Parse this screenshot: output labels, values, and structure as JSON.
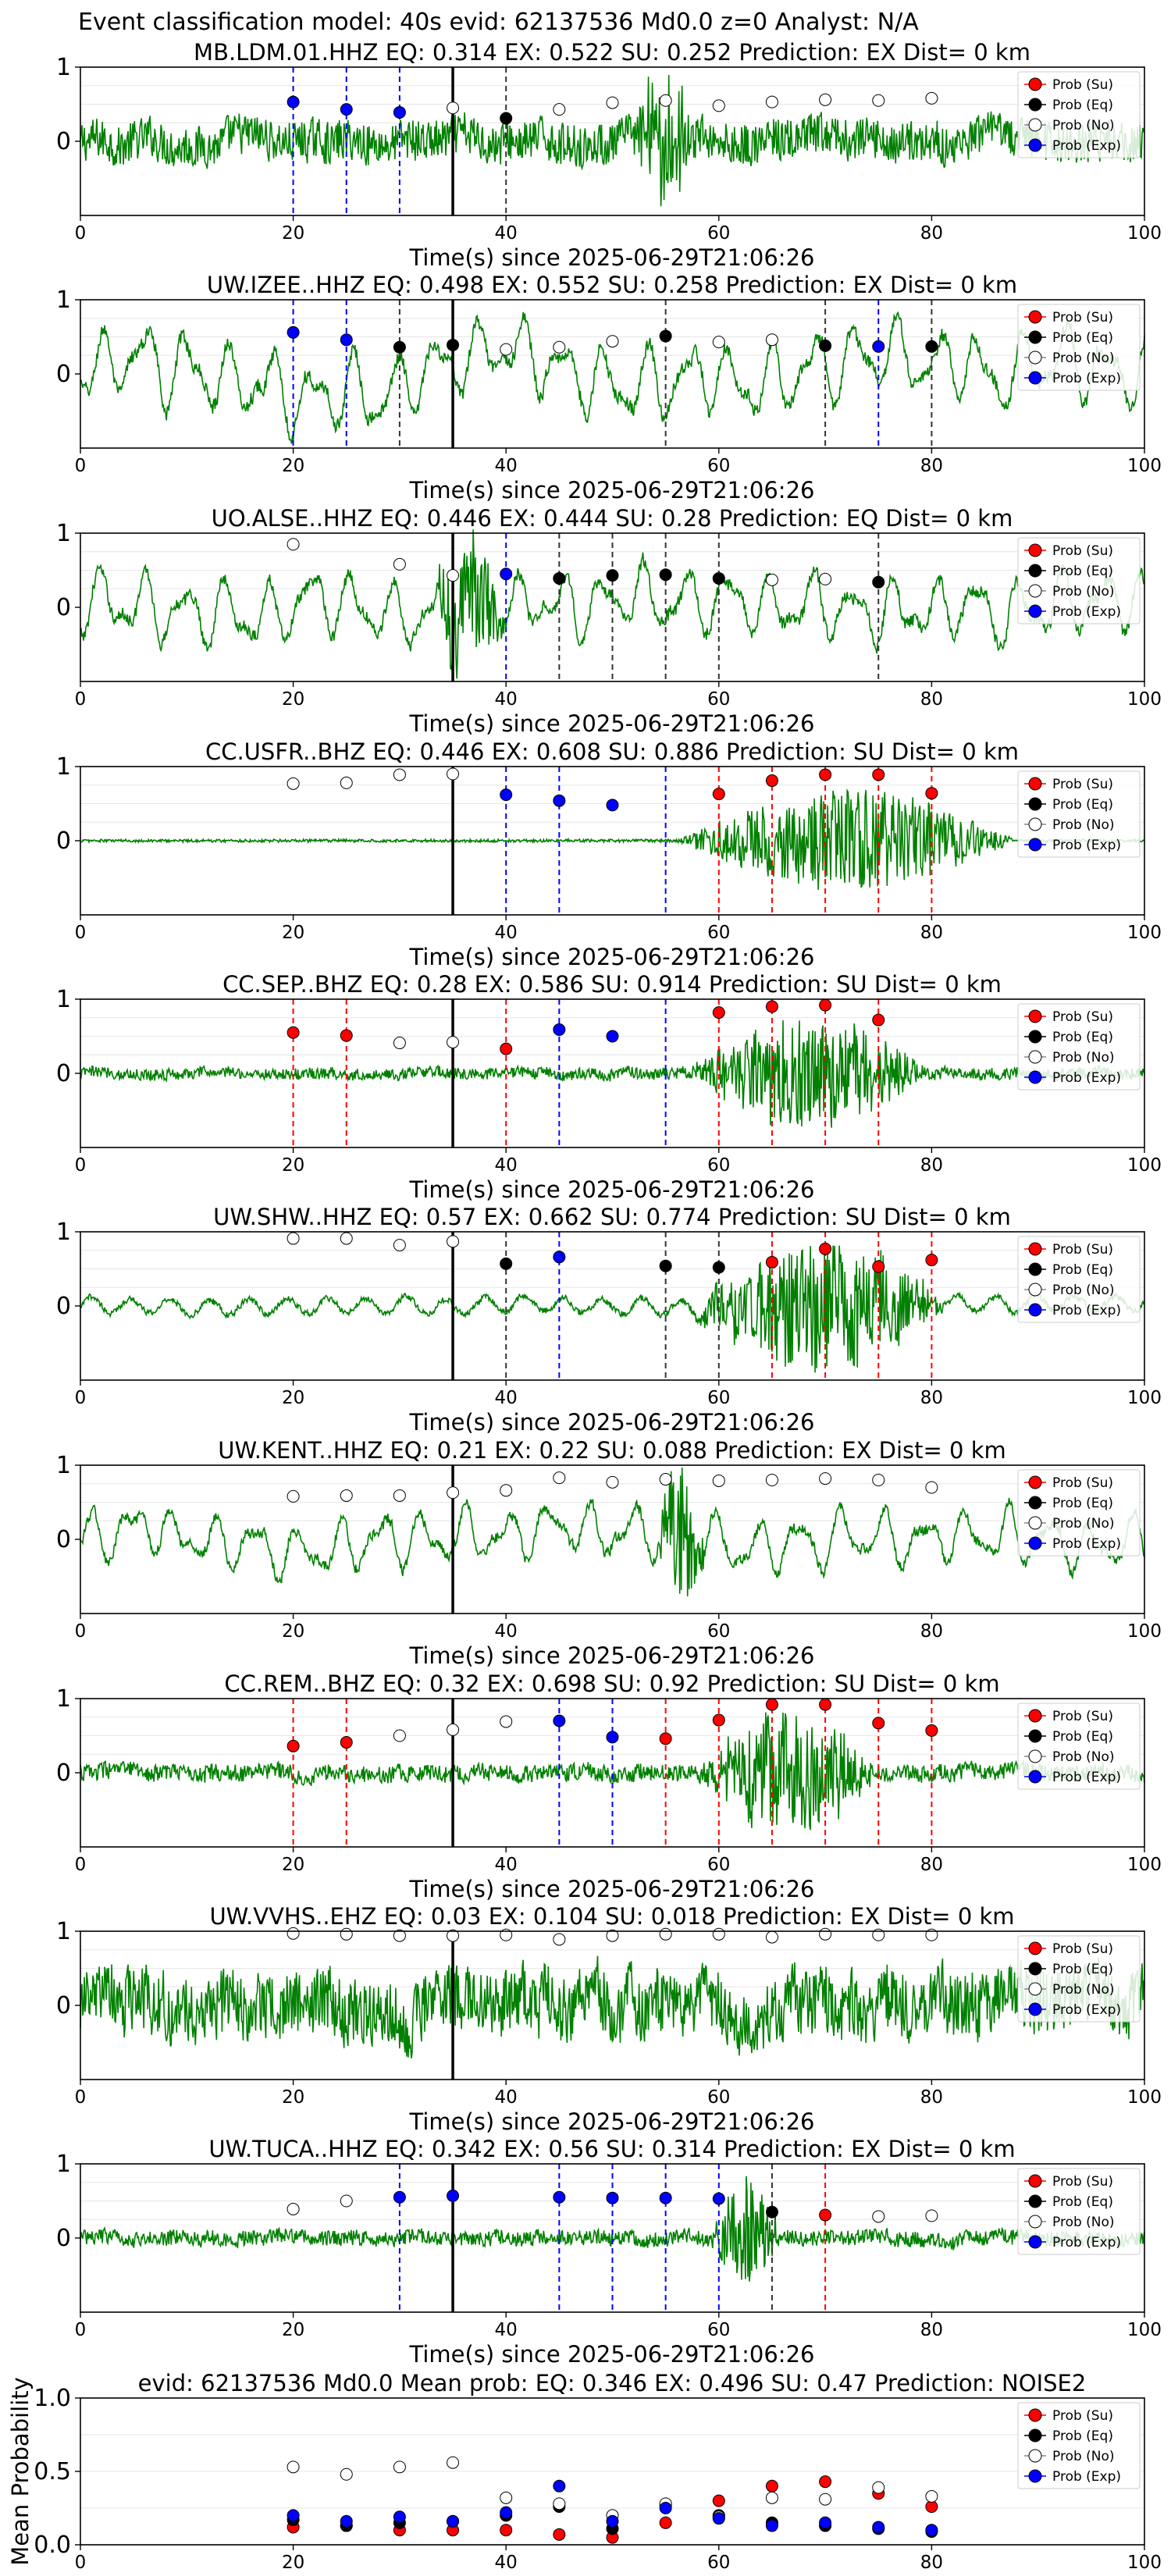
{
  "suptitle": "Event classification model: 40s evid: 62137536 Md0.0 z=0 Analyst: N/A",
  "colors": {
    "waveform": "#008000",
    "su": "#ff0000",
    "eq": "#000000",
    "no": "#ffffff",
    "exp": "#0000ff",
    "arrival": "#000000",
    "grid": "#e6e6e6"
  },
  "legend": {
    "placement": "top-right",
    "entries": [
      "Prob (Su)",
      "Prob (Eq)",
      "Prob (No)",
      "Prob (Exp)"
    ]
  },
  "chart_data": [
    {
      "type": "line",
      "station": "MB.LDM.01.HHZ",
      "title": "MB.LDM.01.HHZ   EQ: 0.314  EX: 0.522  SU: 0.252   Prediction: EX    Dist= 0 km",
      "xlabel": "Time(s) since 2025-06-29T21:06:26",
      "xlim": [
        0,
        100
      ],
      "ylim": [
        -1,
        1
      ],
      "xticks": [
        "0",
        "20",
        "40",
        "60",
        "80",
        "100"
      ],
      "yticks": [
        "1",
        "0"
      ],
      "arrival_time": 35,
      "waveform": {
        "style": "broadband noise",
        "amplitude": 0.32,
        "burst": [
          52,
          58,
          0.85
        ]
      },
      "window_times": [
        20,
        25,
        30,
        35,
        40,
        45,
        50,
        55,
        60,
        65,
        70,
        75,
        80
      ],
      "window_probs": [
        0.53,
        0.43,
        0.39,
        0.45,
        0.31,
        0.43,
        0.52,
        0.55,
        0.48,
        0.53,
        0.56,
        0.55,
        0.58
      ],
      "window_class": [
        "exp",
        "exp",
        "exp",
        "no",
        "eq",
        "no",
        "no",
        "no",
        "no",
        "no",
        "no",
        "no",
        "no"
      ],
      "markers": [
        {
          "t": 20,
          "kind": "exp"
        },
        {
          "t": 25,
          "kind": "exp"
        },
        {
          "t": 30,
          "kind": "exp"
        },
        {
          "t": 40,
          "kind": "eq"
        }
      ]
    },
    {
      "type": "line",
      "station": "UW.IZEE..HHZ",
      "title": "UW.IZEE..HHZ   EQ: 0.498  EX: 0.552  SU: 0.258   Prediction: EX    Dist= 0 km",
      "xlabel": "Time(s) since 2025-06-29T21:06:26",
      "xlim": [
        0,
        100
      ],
      "ylim": [
        -1,
        1
      ],
      "xticks": [
        "0",
        "20",
        "40",
        "60",
        "80",
        "100"
      ],
      "yticks": [
        "1",
        "0"
      ],
      "arrival_time": 35,
      "waveform": {
        "style": "long-period swell",
        "amplitude": 0.6
      },
      "window_times": [
        20,
        25,
        30,
        35,
        40,
        45,
        50,
        55,
        60,
        65,
        70,
        75,
        80
      ],
      "window_probs": [
        0.56,
        0.46,
        0.36,
        0.39,
        0.33,
        0.36,
        0.44,
        0.51,
        0.43,
        0.46,
        0.38,
        0.37,
        0.37
      ],
      "window_class": [
        "exp",
        "exp",
        "eq",
        "eq",
        "no",
        "no",
        "no",
        "eq",
        "no",
        "no",
        "eq",
        "exp",
        "eq"
      ],
      "markers": [
        {
          "t": 20,
          "kind": "exp"
        },
        {
          "t": 25,
          "kind": "exp"
        },
        {
          "t": 30,
          "kind": "eq"
        },
        {
          "t": 55,
          "kind": "eq"
        },
        {
          "t": 70,
          "kind": "eq"
        },
        {
          "t": 75,
          "kind": "exp"
        },
        {
          "t": 80,
          "kind": "eq"
        }
      ]
    },
    {
      "type": "line",
      "station": "UO.ALSE..HHZ",
      "title": "UO.ALSE..HHZ   EQ: 0.446  EX: 0.444  SU: 0.28   Prediction: EQ    Dist= 0 km",
      "xlabel": "Time(s) since 2025-06-29T21:06:26",
      "xlim": [
        0,
        100
      ],
      "ylim": [
        -1,
        1
      ],
      "xticks": [
        "0",
        "20",
        "40",
        "60",
        "80",
        "100"
      ],
      "yticks": [
        "1",
        "0"
      ],
      "arrival_time": 35,
      "waveform": {
        "style": "long-period swell",
        "amplitude": 0.55,
        "burst": [
          33,
          40,
          0.9
        ]
      },
      "window_times": [
        20,
        25,
        30,
        35,
        40,
        45,
        50,
        55,
        60,
        65,
        70,
        75,
        80
      ],
      "window_probs": [
        0.85,
        null,
        0.58,
        0.43,
        0.45,
        0.39,
        0.43,
        0.44,
        0.39,
        0.37,
        0.38,
        0.34,
        null
      ],
      "window_class": [
        "no",
        null,
        "no",
        "no",
        "exp",
        "eq",
        "eq",
        "eq",
        "eq",
        "no",
        "no",
        "eq",
        null
      ],
      "markers": [
        {
          "t": 40,
          "kind": "exp"
        },
        {
          "t": 45,
          "kind": "eq"
        },
        {
          "t": 50,
          "kind": "eq"
        },
        {
          "t": 55,
          "kind": "eq"
        },
        {
          "t": 60,
          "kind": "eq"
        },
        {
          "t": 75,
          "kind": "eq"
        }
      ]
    },
    {
      "type": "line",
      "station": "CC.USFR..BHZ",
      "title": "CC.USFR..BHZ   EQ: 0.446  EX: 0.608  SU: 0.886   Prediction: SU    Dist= 0 km",
      "xlabel": "Time(s) since 2025-06-29T21:06:26",
      "xlim": [
        0,
        100
      ],
      "ylim": [
        -1,
        1
      ],
      "xticks": [
        "0",
        "20",
        "40",
        "60",
        "80",
        "100"
      ],
      "yticks": [
        "1",
        "0"
      ],
      "arrival_time": 35,
      "waveform": {
        "style": "quiet then burst",
        "amplitude": 0.02,
        "burst": [
          56,
          88,
          0.7
        ]
      },
      "window_times": [
        20,
        25,
        30,
        35,
        40,
        45,
        50,
        55,
        60,
        65,
        70,
        75,
        80
      ],
      "window_probs": [
        0.77,
        0.78,
        0.89,
        0.9,
        0.62,
        0.54,
        0.48,
        null,
        0.63,
        0.81,
        0.89,
        0.89,
        0.64
      ],
      "window_class": [
        "no",
        "no",
        "no",
        "no",
        "exp",
        "exp",
        "exp",
        null,
        "su",
        "su",
        "su",
        "su",
        "su"
      ],
      "markers": [
        {
          "t": 40,
          "kind": "exp"
        },
        {
          "t": 45,
          "kind": "exp"
        },
        {
          "t": 55,
          "kind": "exp"
        },
        {
          "t": 60,
          "kind": "su"
        },
        {
          "t": 65,
          "kind": "su"
        },
        {
          "t": 70,
          "kind": "su"
        },
        {
          "t": 75,
          "kind": "su"
        },
        {
          "t": 80,
          "kind": "su"
        }
      ]
    },
    {
      "type": "line",
      "station": "CC.SEP..BHZ",
      "title": "CC.SEP..BHZ   EQ: 0.28  EX: 0.586  SU: 0.914   Prediction: SU    Dist= 0 km",
      "xlabel": "Time(s) since 2025-06-29T21:06:26",
      "xlim": [
        0,
        100
      ],
      "ylim": [
        -1,
        1
      ],
      "xticks": [
        "0",
        "20",
        "40",
        "60",
        "80",
        "100"
      ],
      "yticks": [
        "1",
        "0"
      ],
      "arrival_time": 35,
      "waveform": {
        "style": "low noise then burst",
        "amplitude": 0.09,
        "burst": [
          57,
          80,
          0.75
        ]
      },
      "window_times": [
        20,
        25,
        30,
        35,
        40,
        45,
        50,
        55,
        60,
        65,
        70,
        75,
        80
      ],
      "window_probs": [
        0.55,
        0.51,
        0.41,
        0.42,
        0.33,
        0.59,
        0.5,
        null,
        0.82,
        0.9,
        0.92,
        0.72,
        null
      ],
      "window_class": [
        "su",
        "su",
        "no",
        "no",
        "su",
        "exp",
        "exp",
        null,
        "su",
        "su",
        "su",
        "su",
        null
      ],
      "markers": [
        {
          "t": 20,
          "kind": "su"
        },
        {
          "t": 25,
          "kind": "su"
        },
        {
          "t": 40,
          "kind": "su"
        },
        {
          "t": 45,
          "kind": "exp"
        },
        {
          "t": 55,
          "kind": "exp"
        },
        {
          "t": 60,
          "kind": "su"
        },
        {
          "t": 65,
          "kind": "su"
        },
        {
          "t": 70,
          "kind": "su"
        },
        {
          "t": 75,
          "kind": "su"
        }
      ]
    },
    {
      "type": "line",
      "station": "UW.SHW..HHZ",
      "title": "UW.SHW..HHZ   EQ: 0.57  EX: 0.662  SU: 0.774   Prediction: SU    Dist= 0 km",
      "xlabel": "Time(s) since 2025-06-29T21:06:26",
      "xlim": [
        0,
        100
      ],
      "ylim": [
        -1,
        1
      ],
      "xticks": [
        "0",
        "20",
        "40",
        "60",
        "80",
        "100"
      ],
      "yticks": [
        "1",
        "0"
      ],
      "arrival_time": 35,
      "waveform": {
        "style": "swell then burst",
        "amplitude": 0.15,
        "burst": [
          57,
          82,
          0.85
        ]
      },
      "window_times": [
        20,
        25,
        30,
        35,
        40,
        45,
        50,
        55,
        60,
        65,
        70,
        75,
        80
      ],
      "window_probs": [
        0.91,
        0.91,
        0.82,
        0.87,
        0.57,
        0.66,
        null,
        0.54,
        0.52,
        0.59,
        0.77,
        0.53,
        0.62
      ],
      "window_class": [
        "no",
        "no",
        "no",
        "no",
        "eq",
        "exp",
        null,
        "eq",
        "eq",
        "su",
        "su",
        "su",
        "su"
      ],
      "markers": [
        {
          "t": 40,
          "kind": "eq"
        },
        {
          "t": 45,
          "kind": "exp"
        },
        {
          "t": 55,
          "kind": "eq"
        },
        {
          "t": 60,
          "kind": "eq"
        },
        {
          "t": 65,
          "kind": "su"
        },
        {
          "t": 70,
          "kind": "su"
        },
        {
          "t": 75,
          "kind": "su"
        },
        {
          "t": 80,
          "kind": "su"
        }
      ]
    },
    {
      "type": "line",
      "station": "UW.KENT..HHZ",
      "title": "UW.KENT..HHZ   EQ: 0.21  EX: 0.22  SU: 0.088   Prediction: EX    Dist= 0 km",
      "xlabel": "Time(s) since 2025-06-29T21:06:26",
      "xlim": [
        0,
        100
      ],
      "ylim": [
        -1,
        1
      ],
      "xticks": [
        "0",
        "20",
        "40",
        "60",
        "80",
        "100"
      ],
      "yticks": [
        "1",
        "0"
      ],
      "arrival_time": 35,
      "waveform": {
        "style": "long-period swell",
        "amplitude": 0.45,
        "burst": [
          54,
          59,
          0.9
        ]
      },
      "window_times": [
        20,
        25,
        30,
        35,
        40,
        45,
        50,
        55,
        60,
        65,
        70,
        75,
        80
      ],
      "window_probs": [
        0.58,
        0.59,
        0.59,
        0.63,
        0.66,
        0.83,
        0.77,
        0.81,
        0.79,
        0.8,
        0.82,
        0.8,
        0.7
      ],
      "window_class": [
        "no",
        "no",
        "no",
        "no",
        "no",
        "no",
        "no",
        "no",
        "no",
        "no",
        "no",
        "no",
        "no"
      ],
      "markers": []
    },
    {
      "type": "line",
      "station": "CC.REM..BHZ",
      "title": "CC.REM..BHZ   EQ: 0.32  EX: 0.698  SU: 0.92   Prediction: SU    Dist= 0 km",
      "xlabel": "Time(s) since 2025-06-29T21:06:26",
      "xlim": [
        0,
        100
      ],
      "ylim": [
        -1,
        1
      ],
      "xticks": [
        "0",
        "20",
        "40",
        "60",
        "80",
        "100"
      ],
      "yticks": [
        "1",
        "0"
      ],
      "arrival_time": 35,
      "waveform": {
        "style": "noise then burst",
        "amplitude": 0.13,
        "burst": [
          58,
          75,
          0.8
        ]
      },
      "window_times": [
        20,
        25,
        30,
        35,
        40,
        45,
        50,
        55,
        60,
        65,
        70,
        75,
        80
      ],
      "window_probs": [
        0.36,
        0.41,
        0.5,
        0.58,
        0.69,
        0.7,
        0.48,
        0.46,
        0.71,
        0.92,
        0.92,
        0.67,
        0.57
      ],
      "window_class": [
        "su",
        "su",
        "no",
        "no",
        "no",
        "exp",
        "exp",
        "su",
        "su",
        "su",
        "su",
        "su",
        "su"
      ],
      "markers": [
        {
          "t": 20,
          "kind": "su"
        },
        {
          "t": 25,
          "kind": "su"
        },
        {
          "t": 45,
          "kind": "exp"
        },
        {
          "t": 50,
          "kind": "exp"
        },
        {
          "t": 55,
          "kind": "su"
        },
        {
          "t": 60,
          "kind": "su"
        },
        {
          "t": 65,
          "kind": "su"
        },
        {
          "t": 70,
          "kind": "su"
        },
        {
          "t": 75,
          "kind": "su"
        },
        {
          "t": 80,
          "kind": "su"
        }
      ]
    },
    {
      "type": "line",
      "station": "UW.VVHS..EHZ",
      "title": "UW.VVHS..EHZ   EQ: 0.03  EX: 0.104  SU: 0.018   Prediction: EX    Dist= 0 km",
      "xlabel": "Time(s) since 2025-06-29T21:06:26",
      "xlim": [
        0,
        100
      ],
      "ylim": [
        -1,
        1
      ],
      "xticks": [
        "0",
        "20",
        "40",
        "60",
        "80",
        "100"
      ],
      "yticks": [
        "1",
        "0"
      ],
      "arrival_time": 35,
      "waveform": {
        "style": "dense noise",
        "amplitude": 0.55
      },
      "window_times": [
        20,
        25,
        30,
        35,
        40,
        45,
        50,
        55,
        60,
        65,
        70,
        75,
        80
      ],
      "window_probs": [
        0.97,
        0.96,
        0.94,
        0.94,
        0.95,
        0.89,
        0.94,
        0.96,
        0.96,
        0.92,
        0.96,
        0.95,
        0.95
      ],
      "window_class": [
        "no",
        "no",
        "no",
        "no",
        "no",
        "no",
        "no",
        "no",
        "no",
        "no",
        "no",
        "no",
        "no"
      ],
      "markers": []
    },
    {
      "type": "line",
      "station": "UW.TUCA..HHZ",
      "title": "UW.TUCA..HHZ   EQ: 0.342  EX: 0.56  SU: 0.314   Prediction: EX    Dist= 0 km",
      "xlabel": "Time(s) since 2025-06-29T21:06:26",
      "xlim": [
        0,
        100
      ],
      "ylim": [
        -1,
        1
      ],
      "xticks": [
        "0",
        "20",
        "40",
        "60",
        "80",
        "100"
      ],
      "yticks": [
        "1",
        "0"
      ],
      "arrival_time": 35,
      "waveform": {
        "style": "noise with burst",
        "amplitude": 0.12,
        "burst": [
          59,
          66,
          0.75
        ]
      },
      "window_times": [
        20,
        25,
        30,
        35,
        40,
        45,
        50,
        55,
        60,
        65,
        70,
        75,
        80
      ],
      "window_probs": [
        0.39,
        0.5,
        0.55,
        0.57,
        null,
        0.55,
        0.54,
        0.54,
        0.53,
        0.35,
        0.31,
        0.29,
        0.3
      ],
      "window_class": [
        "no",
        "no",
        "exp",
        "exp",
        null,
        "exp",
        "exp",
        "exp",
        "exp",
        "eq",
        "su",
        "no",
        "no"
      ],
      "markers": [
        {
          "t": 30,
          "kind": "exp"
        },
        {
          "t": 45,
          "kind": "exp"
        },
        {
          "t": 50,
          "kind": "exp"
        },
        {
          "t": 55,
          "kind": "exp"
        },
        {
          "t": 60,
          "kind": "exp"
        },
        {
          "t": 65,
          "kind": "eq"
        },
        {
          "t": 70,
          "kind": "su"
        }
      ]
    },
    {
      "type": "scatter",
      "title": "evid: 62137536  Md0.0   Mean prob:   EQ: 0.346  EX: 0.496  SU: 0.47   Prediction: NOISE2",
      "xlabel": "",
      "ylabel": "Mean Probability",
      "xlim": [
        0,
        100
      ],
      "ylim": [
        0,
        1
      ],
      "xticks": [
        "0",
        "20",
        "40",
        "60",
        "80",
        "100"
      ],
      "yticks": [
        "0.0",
        "0.5",
        "1.0"
      ],
      "grid": true,
      "x": [
        20,
        25,
        30,
        35,
        40,
        45,
        50,
        55,
        60,
        65,
        70,
        75,
        80
      ],
      "series": [
        {
          "name": "Prob (Su)",
          "key": "su",
          "values": [
            0.12,
            0.13,
            0.1,
            0.1,
            0.1,
            0.07,
            0.05,
            0.15,
            0.3,
            0.4,
            0.43,
            0.35,
            0.26
          ]
        },
        {
          "name": "Prob (Eq)",
          "key": "eq",
          "values": [
            0.17,
            0.13,
            0.15,
            0.16,
            0.2,
            0.26,
            0.11,
            0.27,
            0.2,
            0.15,
            0.13,
            0.11,
            0.09
          ]
        },
        {
          "name": "Prob (No)",
          "key": "no",
          "values": [
            0.53,
            0.48,
            0.53,
            0.56,
            0.32,
            0.28,
            0.2,
            0.28,
            0.19,
            0.32,
            0.31,
            0.39,
            0.33
          ]
        },
        {
          "name": "Prob (Exp)",
          "key": "exp",
          "values": [
            0.2,
            0.16,
            0.19,
            0.16,
            0.22,
            0.4,
            0.16,
            0.25,
            0.18,
            0.13,
            0.15,
            0.12,
            0.1
          ]
        }
      ]
    }
  ]
}
